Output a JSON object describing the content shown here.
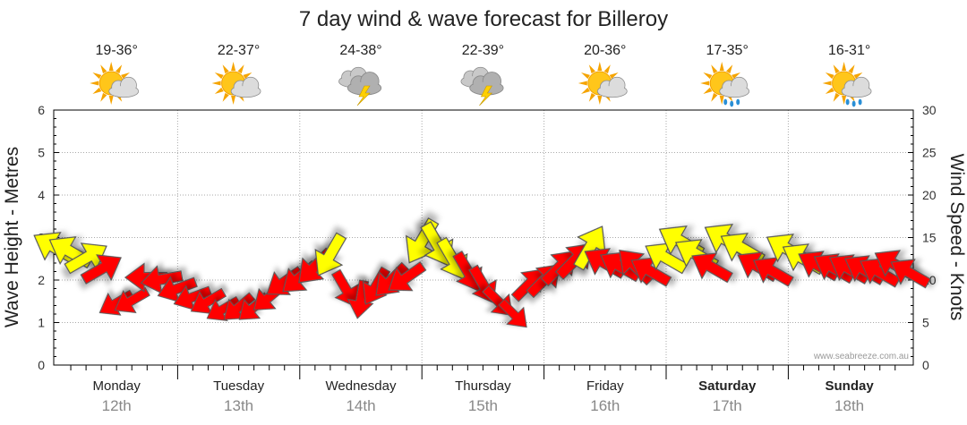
{
  "chart_data": {
    "type": "line",
    "title": "7 day wind & wave forecast for Billeroy",
    "ylabel": "Wave Height - Metres",
    "y2label": "Wind Speed - Knots",
    "ylim": [
      0,
      6
    ],
    "y2lim": [
      0,
      30
    ],
    "y_ticks": [
      "0",
      "1",
      "2",
      "3",
      "4",
      "5",
      "6"
    ],
    "y2_ticks": [
      "0",
      "5",
      "10",
      "15",
      "20",
      "25",
      "30"
    ],
    "grid": true,
    "credit": "www.seabreeze.com.au",
    "days": [
      {
        "name": "Monday",
        "date": "12th",
        "temp": "19-36°",
        "icon": "sun-cloud-icon",
        "bold": false
      },
      {
        "name": "Tuesday",
        "date": "13th",
        "temp": "22-37°",
        "icon": "sun-cloud-icon",
        "bold": false
      },
      {
        "name": "Wednesday",
        "date": "14th",
        "temp": "24-38°",
        "icon": "storm-cloud-icon",
        "bold": false
      },
      {
        "name": "Thursday",
        "date": "15th",
        "temp": "22-39°",
        "icon": "storm-cloud-icon",
        "bold": false
      },
      {
        "name": "Friday",
        "date": "16th",
        "temp": "20-36°",
        "icon": "sun-cloud-icon",
        "bold": false
      },
      {
        "name": "Saturday",
        "date": "17th",
        "temp": "17-35°",
        "icon": "sun-rain-icon",
        "bold": true
      },
      {
        "name": "Sunday",
        "date": "18th",
        "temp": "16-31°",
        "icon": "sun-rain-icon",
        "bold": true
      }
    ],
    "series": [
      {
        "name": "Wind",
        "unit": "knots",
        "x_hours": [
          0,
          3,
          6,
          9,
          12,
          15,
          18,
          21,
          24,
          27,
          30,
          33,
          36,
          39,
          42,
          45,
          48,
          51,
          54,
          57,
          60,
          63,
          66,
          69,
          72,
          75,
          78,
          81,
          84,
          87,
          90,
          93,
          96,
          99,
          102,
          105,
          108,
          111,
          114,
          117,
          120,
          123,
          126,
          129,
          132,
          135,
          138,
          141,
          144,
          147,
          150,
          153,
          156,
          159,
          162,
          165,
          168
        ],
        "values": [
          13.8,
          13.3,
          12.6,
          11.3,
          7.3,
          7.6,
          10.3,
          10.1,
          9.0,
          8.0,
          7.5,
          6.6,
          6.8,
          6.8,
          8.0,
          9.8,
          10.3,
          11.6,
          13.0,
          9.0,
          7.8,
          9.3,
          10.0,
          10.3,
          14.6,
          14.2,
          12.5,
          11.0,
          9.5,
          7.5,
          6.0,
          9.5,
          10.0,
          11.5,
          12.3,
          13.8,
          12.0,
          11.6,
          11.6,
          11.0,
          12.6,
          14.5,
          13.0,
          11.5,
          14.7,
          13.7,
          11.6,
          11.0,
          13.6,
          12.5,
          11.7,
          11.4,
          11.3,
          11.2,
          10.9,
          11.8,
          10.8
        ],
        "bearing_deg": [
          300,
          300,
          60,
          60,
          240,
          240,
          270,
          260,
          250,
          250,
          240,
          240,
          230,
          230,
          230,
          235,
          230,
          225,
          210,
          150,
          190,
          210,
          225,
          235,
          210,
          150,
          150,
          150,
          150,
          135,
          135,
          45,
          45,
          45,
          45,
          30,
          300,
          300,
          315,
          300,
          300,
          300,
          300,
          300,
          300,
          300,
          300,
          300,
          300,
          300,
          300,
          300,
          300,
          300,
          300,
          300,
          300
        ]
      }
    ]
  }
}
